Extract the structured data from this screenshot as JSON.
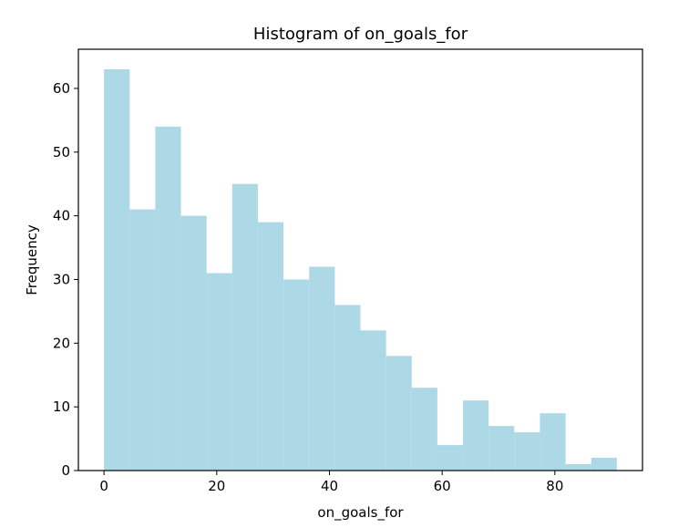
{
  "chart_data": {
    "type": "bar",
    "title": "Histogram of on_goals_for",
    "xlabel": "on_goals_for",
    "ylabel": "Frequency",
    "bin_start": 0,
    "bin_width": 4.55,
    "bins": [
      [
        0,
        4.55
      ],
      [
        4.55,
        9.1
      ],
      [
        9.1,
        13.65
      ],
      [
        13.65,
        18.2
      ],
      [
        18.2,
        22.75
      ],
      [
        22.75,
        27.3
      ],
      [
        27.3,
        31.85
      ],
      [
        31.85,
        36.4
      ],
      [
        36.4,
        40.95
      ],
      [
        40.95,
        45.5
      ],
      [
        45.5,
        50.05
      ],
      [
        50.05,
        54.6
      ],
      [
        54.6,
        59.15
      ],
      [
        59.15,
        63.7
      ],
      [
        63.7,
        68.25
      ],
      [
        68.25,
        72.8
      ],
      [
        72.8,
        77.35
      ],
      [
        77.35,
        81.9
      ],
      [
        81.9,
        86.45
      ],
      [
        86.45,
        91.0
      ]
    ],
    "values": [
      63,
      41,
      54,
      40,
      31,
      45,
      39,
      30,
      32,
      26,
      22,
      18,
      13,
      4,
      11,
      7,
      6,
      9,
      1,
      2
    ],
    "xlim": [
      -4.55,
      95.55
    ],
    "ylim": [
      0,
      66.15
    ],
    "xticks": [
      0,
      20,
      40,
      60,
      80
    ],
    "yticks": [
      0,
      10,
      20,
      30,
      40,
      50,
      60
    ],
    "bar_color": "#add8e6",
    "grid": false,
    "legend": "none"
  }
}
